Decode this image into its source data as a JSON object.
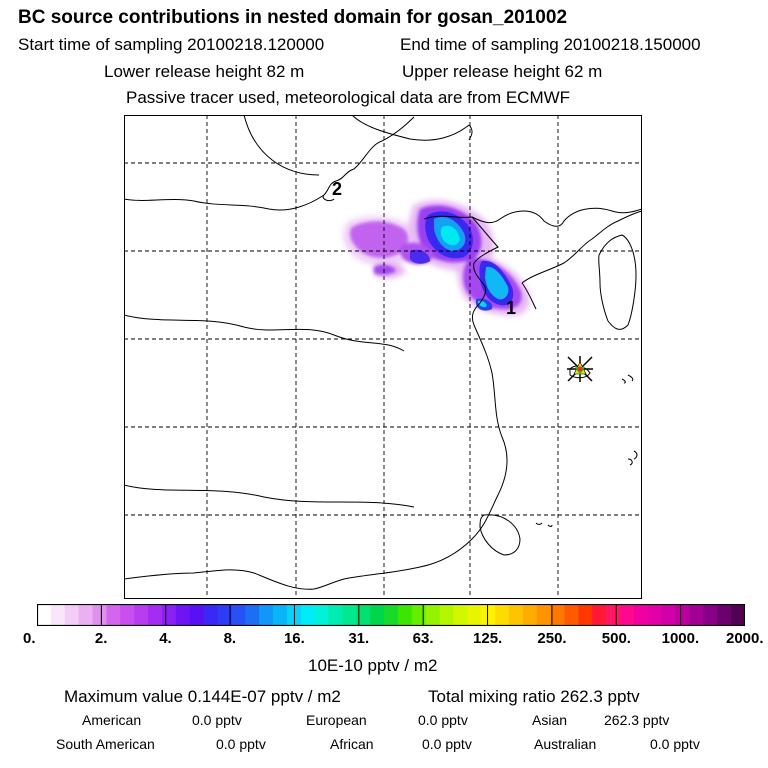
{
  "header": {
    "title": "BC  source contributions in nested domain for gosan_201002",
    "start_time": "Start time of sampling 20100218.120000",
    "end_time": "End time of sampling 20100218.150000",
    "lower_release": "Lower release height   82 m",
    "upper_release": "Upper release height   62 m",
    "tracer_note": "Passive tracer used, meteorological data are from ECMWF"
  },
  "map": {
    "markers": [
      {
        "label": "1"
      },
      {
        "label": "2"
      }
    ]
  },
  "colorbar": {
    "ticks": [
      "0.",
      "2.",
      "4.",
      "8.",
      "16.",
      "31.",
      "63.",
      "125.",
      "250.",
      "500.",
      "1000.",
      "2000."
    ],
    "colors": [
      "#ffffff",
      "#f9e6fb",
      "#f2cdf7",
      "#ebb0f3",
      "#e090ef",
      "#d466ee",
      "#c84ef0",
      "#b83cf0",
      "#a52cf2",
      "#8a20f4",
      "#6e14f5",
      "#5a10f4",
      "#3c28f4",
      "#2f3cf5",
      "#2850f5",
      "#1c6ef5",
      "#1296f7",
      "#0ab4f8",
      "#08d2f9",
      "#00ecf8",
      "#00f2d8",
      "#00ecb0",
      "#00e890",
      "#00e070",
      "#00d64c",
      "#18da28",
      "#3ce600",
      "#66ee00",
      "#92f200",
      "#b4f600",
      "#d2f800",
      "#e8f400",
      "#fff200",
      "#ffdc00",
      "#ffc400",
      "#ffac00",
      "#ff9400",
      "#ff7800",
      "#ff5a00",
      "#ff3800",
      "#ff1838",
      "#ff1868",
      "#ff0890",
      "#f000a0",
      "#e200a8",
      "#d000a8",
      "#bc00a0",
      "#a20094",
      "#880088",
      "#6c006c",
      "#520052"
    ],
    "units": "10E-10 pptv / m2"
  },
  "summary": {
    "max_value": "Maximum value  0.144E-07 pptv / m2",
    "total_mixing": "Total mixing ratio     262.3 pptv"
  },
  "sources": [
    {
      "name": "American",
      "value": "0.0 pptv"
    },
    {
      "name": "European",
      "value": "0.0 pptv"
    },
    {
      "name": "Asian",
      "value": "262.3 pptv"
    },
    {
      "name": "South American",
      "value": "0.0 pptv"
    },
    {
      "name": "African",
      "value": "0.0 pptv"
    },
    {
      "name": "Australian",
      "value": "0.0 pptv"
    }
  ]
}
